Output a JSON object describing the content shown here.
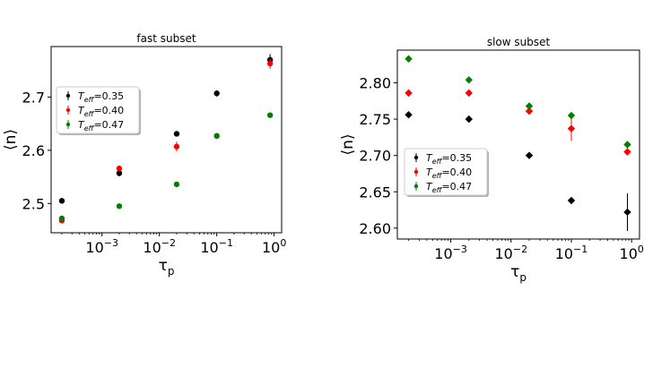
{
  "chart_data": [
    {
      "type": "scatter",
      "title": "fast subset",
      "xlabel": "τ",
      "xlabel_sub": "p",
      "ylabel": "⟨n⟩",
      "xscale": "log",
      "xlim": [
        0.00013,
        1.35
      ],
      "ylim": [
        2.445,
        2.795
      ],
      "xticks": [
        {
          "value": 0.001,
          "base": "10",
          "exp": "−3"
        },
        {
          "value": 0.01,
          "base": "10",
          "exp": "−2"
        },
        {
          "value": 0.1,
          "base": "10",
          "exp": "−1"
        },
        {
          "value": 1,
          "base": "10",
          "exp": "0"
        }
      ],
      "yticks": [
        {
          "value": 2.5,
          "label": "2.5"
        },
        {
          "value": 2.6,
          "label": "2.6"
        },
        {
          "value": 2.7,
          "label": "2.7"
        }
      ],
      "marker": "circle",
      "legend_position": "center-left",
      "series": [
        {
          "label_main": "T",
          "label_sub": "eff",
          "label_value": "=0.35",
          "color": "#000000",
          "x": [
            0.0002,
            0.002,
            0.02,
            0.1,
            0.85
          ],
          "y": [
            2.505,
            2.557,
            2.631,
            2.707,
            2.77
          ],
          "err": [
            0.003,
            0.006,
            0.004,
            0.006,
            0.011
          ]
        },
        {
          "label_main": "T",
          "label_sub": "eff",
          "label_value": "=0.40",
          "color": "#ff0000",
          "x": [
            0.0002,
            0.002,
            0.02,
            0.1,
            0.85
          ],
          "y": [
            2.468,
            2.566,
            2.607,
            2.627,
            2.763
          ],
          "err": [
            0.003,
            0.004,
            0.009,
            0.003,
            0.01
          ]
        },
        {
          "label_main": "T",
          "label_sub": "eff",
          "label_value": "=0.47",
          "color": "#008000",
          "x": [
            0.0002,
            0.002,
            0.02,
            0.1,
            0.85
          ],
          "y": [
            2.472,
            2.495,
            2.536,
            2.627,
            2.666
          ],
          "err": [
            0.002,
            0.002,
            0.003,
            0.002,
            0.002
          ]
        }
      ]
    },
    {
      "type": "scatter",
      "title": "slow subset",
      "xlabel": "τ",
      "xlabel_sub": "p",
      "ylabel": "⟨n⟩",
      "xscale": "log",
      "xlim": [
        0.00013,
        1.35
      ],
      "ylim": [
        2.585,
        2.845
      ],
      "xticks": [
        {
          "value": 0.001,
          "base": "10",
          "exp": "−3"
        },
        {
          "value": 0.01,
          "base": "10",
          "exp": "−2"
        },
        {
          "value": 0.1,
          "base": "10",
          "exp": "−1"
        },
        {
          "value": 1,
          "base": "10",
          "exp": "0"
        }
      ],
      "yticks": [
        {
          "value": 2.6,
          "label": "2.60"
        },
        {
          "value": 2.65,
          "label": "2.65"
        },
        {
          "value": 2.7,
          "label": "2.70"
        },
        {
          "value": 2.75,
          "label": "2.75"
        },
        {
          "value": 2.8,
          "label": "2.80"
        }
      ],
      "marker": "diamond",
      "legend_position": "center-left",
      "series": [
        {
          "label_main": "T",
          "label_sub": "eff",
          "label_value": "=0.35",
          "color": "#000000",
          "x": [
            0.0002,
            0.002,
            0.02,
            0.1,
            0.85
          ],
          "y": [
            2.756,
            2.75,
            2.7,
            2.638,
            2.622
          ],
          "err": [
            0.002,
            0.002,
            0.002,
            0.002,
            0.026
          ]
        },
        {
          "label_main": "T",
          "label_sub": "eff",
          "label_value": "=0.40",
          "color": "#ff0000",
          "x": [
            0.0002,
            0.002,
            0.02,
            0.1,
            0.85
          ],
          "y": [
            2.786,
            2.786,
            2.761,
            2.737,
            2.705
          ],
          "err": [
            0.002,
            0.002,
            0.004,
            0.017,
            0.003
          ]
        },
        {
          "label_main": "T",
          "label_sub": "eff",
          "label_value": "=0.47",
          "color": "#008000",
          "x": [
            0.0002,
            0.002,
            0.02,
            0.1,
            0.85
          ],
          "y": [
            2.833,
            2.804,
            2.768,
            2.755,
            2.715
          ],
          "err": [
            0.002,
            0.002,
            0.003,
            0.003,
            0.002
          ]
        }
      ]
    }
  ]
}
